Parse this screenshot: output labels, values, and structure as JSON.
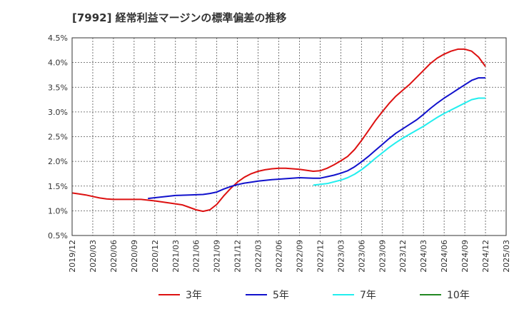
{
  "chart_data": {
    "type": "line",
    "title": "[7992]  経常利益マージンの標準偏差の推移",
    "xlabel": "",
    "ylabel": "",
    "ylim": [
      0.5,
      4.5
    ],
    "y_ticks": [
      "0.5%",
      "1.0%",
      "1.5%",
      "2.0%",
      "2.5%",
      "3.0%",
      "3.5%",
      "4.0%",
      "4.5%"
    ],
    "x_ticks": [
      "2019/12",
      "2020/03",
      "2020/06",
      "2020/09",
      "2020/12",
      "2021/03",
      "2021/06",
      "2021/09",
      "2021/12",
      "2022/03",
      "2022/06",
      "2022/09",
      "2022/12",
      "2023/03",
      "2023/06",
      "2023/09",
      "2023/12",
      "2024/03",
      "2024/06",
      "2024/09",
      "2024/12",
      "2025/03"
    ],
    "grid": true,
    "legend_position": "bottom",
    "series": [
      {
        "name": "3年",
        "color": "#dd1111",
        "points": [
          [
            "2019/12",
            1.36
          ],
          [
            "2020/01",
            1.34
          ],
          [
            "2020/02",
            1.32
          ],
          [
            "2020/03",
            1.29
          ],
          [
            "2020/04",
            1.26
          ],
          [
            "2020/05",
            1.24
          ],
          [
            "2020/06",
            1.23
          ],
          [
            "2020/08",
            1.23
          ],
          [
            "2020/10",
            1.23
          ],
          [
            "2020/12",
            1.2
          ],
          [
            "2021/02",
            1.16
          ],
          [
            "2021/04",
            1.12
          ],
          [
            "2021/05",
            1.07
          ],
          [
            "2021/06",
            1.02
          ],
          [
            "2021/07",
            0.99
          ],
          [
            "2021/08",
            1.02
          ],
          [
            "2021/09",
            1.13
          ],
          [
            "2021/10",
            1.3
          ],
          [
            "2021/11",
            1.45
          ],
          [
            "2021/12",
            1.58
          ],
          [
            "2022/01",
            1.68
          ],
          [
            "2022/02",
            1.75
          ],
          [
            "2022/03",
            1.8
          ],
          [
            "2022/04",
            1.83
          ],
          [
            "2022/05",
            1.85
          ],
          [
            "2022/06",
            1.86
          ],
          [
            "2022/07",
            1.86
          ],
          [
            "2022/08",
            1.85
          ],
          [
            "2022/09",
            1.84
          ],
          [
            "2022/10",
            1.82
          ],
          [
            "2022/11",
            1.8
          ],
          [
            "2022/12",
            1.81
          ],
          [
            "2023/01",
            1.86
          ],
          [
            "2023/02",
            1.93
          ],
          [
            "2023/03",
            2.01
          ],
          [
            "2023/04",
            2.1
          ],
          [
            "2023/05",
            2.24
          ],
          [
            "2023/06",
            2.42
          ],
          [
            "2023/07",
            2.62
          ],
          [
            "2023/08",
            2.82
          ],
          [
            "2023/09",
            3.0
          ],
          [
            "2023/10",
            3.17
          ],
          [
            "2023/11",
            3.32
          ],
          [
            "2023/12",
            3.44
          ],
          [
            "2024/01",
            3.56
          ],
          [
            "2024/02",
            3.7
          ],
          [
            "2024/03",
            3.84
          ],
          [
            "2024/04",
            3.98
          ],
          [
            "2024/05",
            4.09
          ],
          [
            "2024/06",
            4.17
          ],
          [
            "2024/07",
            4.23
          ],
          [
            "2024/08",
            4.27
          ],
          [
            "2024/09",
            4.27
          ],
          [
            "2024/10",
            4.23
          ],
          [
            "2024/11",
            4.11
          ],
          [
            "2024/12",
            3.92
          ]
        ]
      },
      {
        "name": "5年",
        "color": "#1111cc",
        "points": [
          [
            "2020/11",
            1.25
          ],
          [
            "2021/01",
            1.28
          ],
          [
            "2021/03",
            1.31
          ],
          [
            "2021/05",
            1.32
          ],
          [
            "2021/07",
            1.33
          ],
          [
            "2021/08",
            1.35
          ],
          [
            "2021/09",
            1.38
          ],
          [
            "2021/10",
            1.44
          ],
          [
            "2021/11",
            1.49
          ],
          [
            "2021/12",
            1.53
          ],
          [
            "2022/01",
            1.56
          ],
          [
            "2022/02",
            1.58
          ],
          [
            "2022/03",
            1.6
          ],
          [
            "2022/05",
            1.63
          ],
          [
            "2022/07",
            1.65
          ],
          [
            "2022/09",
            1.67
          ],
          [
            "2022/11",
            1.66
          ],
          [
            "2022/12",
            1.66
          ],
          [
            "2023/01",
            1.69
          ],
          [
            "2023/02",
            1.72
          ],
          [
            "2023/03",
            1.76
          ],
          [
            "2023/04",
            1.81
          ],
          [
            "2023/05",
            1.89
          ],
          [
            "2023/06",
            1.99
          ],
          [
            "2023/07",
            2.1
          ],
          [
            "2023/08",
            2.22
          ],
          [
            "2023/09",
            2.34
          ],
          [
            "2023/10",
            2.46
          ],
          [
            "2023/11",
            2.57
          ],
          [
            "2023/12",
            2.66
          ],
          [
            "2024/01",
            2.75
          ],
          [
            "2024/02",
            2.84
          ],
          [
            "2024/03",
            2.95
          ],
          [
            "2024/04",
            3.07
          ],
          [
            "2024/05",
            3.18
          ],
          [
            "2024/06",
            3.28
          ],
          [
            "2024/07",
            3.37
          ],
          [
            "2024/08",
            3.46
          ],
          [
            "2024/09",
            3.55
          ],
          [
            "2024/10",
            3.64
          ],
          [
            "2024/11",
            3.69
          ],
          [
            "2024/12",
            3.69
          ]
        ]
      },
      {
        "name": "7年",
        "color": "#22eeee",
        "points": [
          [
            "2022/11",
            1.52
          ],
          [
            "2023/01",
            1.55
          ],
          [
            "2023/03",
            1.62
          ],
          [
            "2023/04",
            1.67
          ],
          [
            "2023/05",
            1.74
          ],
          [
            "2023/06",
            1.83
          ],
          [
            "2023/07",
            1.94
          ],
          [
            "2023/08",
            2.06
          ],
          [
            "2023/09",
            2.17
          ],
          [
            "2023/10",
            2.28
          ],
          [
            "2023/11",
            2.38
          ],
          [
            "2023/12",
            2.47
          ],
          [
            "2024/01",
            2.55
          ],
          [
            "2024/02",
            2.63
          ],
          [
            "2024/03",
            2.71
          ],
          [
            "2024/04",
            2.8
          ],
          [
            "2024/05",
            2.89
          ],
          [
            "2024/06",
            2.97
          ],
          [
            "2024/07",
            3.04
          ],
          [
            "2024/08",
            3.11
          ],
          [
            "2024/09",
            3.18
          ],
          [
            "2024/10",
            3.25
          ],
          [
            "2024/11",
            3.28
          ],
          [
            "2024/12",
            3.28
          ]
        ]
      },
      {
        "name": "10年",
        "color": "#228822",
        "points": []
      }
    ]
  }
}
